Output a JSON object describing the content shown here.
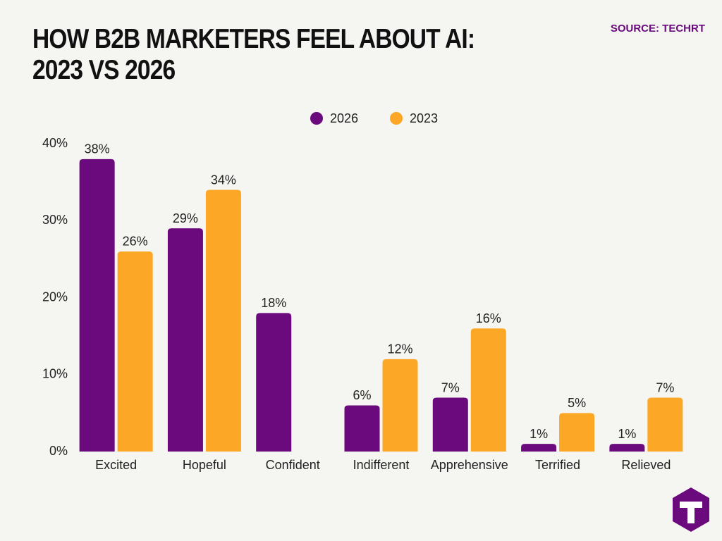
{
  "chart_data": {
    "type": "bar",
    "title": "HOW B2B MARKETERS FEEL ABOUT AI: 2023 VS 2026",
    "source": "SOURCE: TECHRT",
    "categories": [
      "Excited",
      "Hopeful",
      "Confident",
      "Indifferent",
      "Apprehensive",
      "Terrified",
      "Relieved"
    ],
    "series": [
      {
        "name": "2026",
        "color": "#6a0a7d",
        "values": [
          38,
          29,
          18,
          6,
          7,
          1,
          1
        ],
        "value_labels": [
          "38%",
          "29%",
          "18%",
          "6%",
          "7%",
          "1%",
          "1%"
        ]
      },
      {
        "name": "2023",
        "color": "#fca726",
        "values": [
          26,
          34,
          null,
          12,
          16,
          5,
          7
        ],
        "value_labels": [
          "26%",
          "34%",
          null,
          "12%",
          "16%",
          "5%",
          "7%"
        ]
      }
    ],
    "ylim": [
      0,
      40
    ],
    "yticks": [
      {
        "value": 0,
        "label": "0%"
      },
      {
        "value": 10,
        "label": "10%"
      },
      {
        "value": 20,
        "label": "20%"
      },
      {
        "value": 30,
        "label": "30%"
      },
      {
        "value": 40,
        "label": "40%"
      }
    ],
    "grid": false,
    "legend": "top"
  }
}
